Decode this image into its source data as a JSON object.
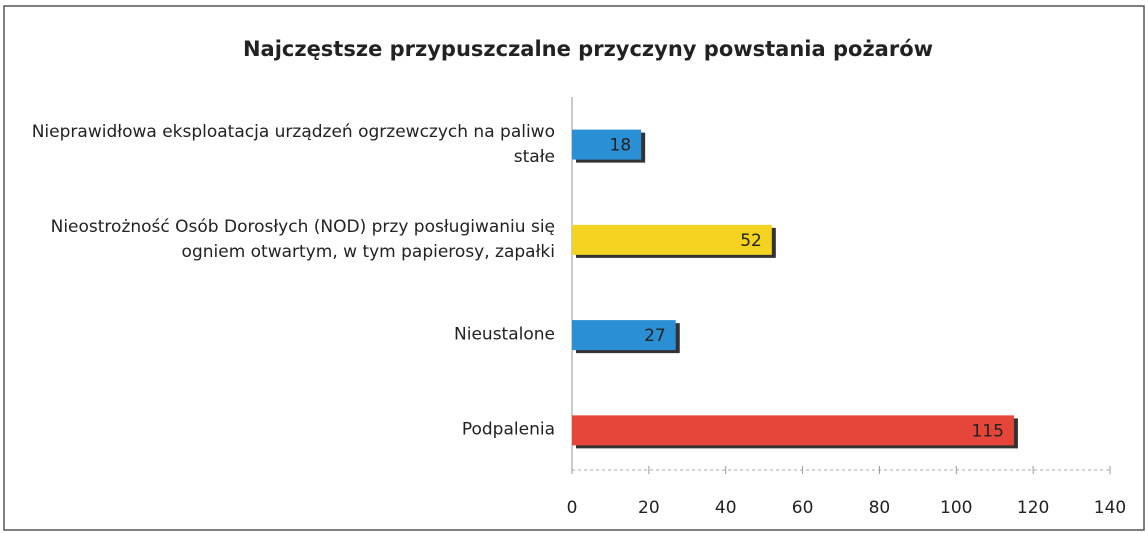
{
  "chart_data": {
    "type": "bar",
    "orientation": "horizontal",
    "title": "Najczęstsze przypuszczalne przyczyny powstania pożarów",
    "categories": [
      "Nieprawidłowa eksploatacja urządzeń ogrzewczych na paliwo stałe",
      "Nieostrożność Osób Dorosłych (NOD) przy posługiwaniu się ogniem otwartym, w tym papierosy, zapałki",
      "Nieustalone",
      "Podpalenia"
    ],
    "values": [
      18,
      52,
      27,
      115
    ],
    "colors": [
      "#2b8fd6",
      "#f3d31f",
      "#2b8fd6",
      "#e6463a"
    ],
    "xlim": [
      0,
      140
    ],
    "xticks": [
      0,
      20,
      40,
      60,
      80,
      100,
      120,
      140
    ],
    "grid": false
  }
}
